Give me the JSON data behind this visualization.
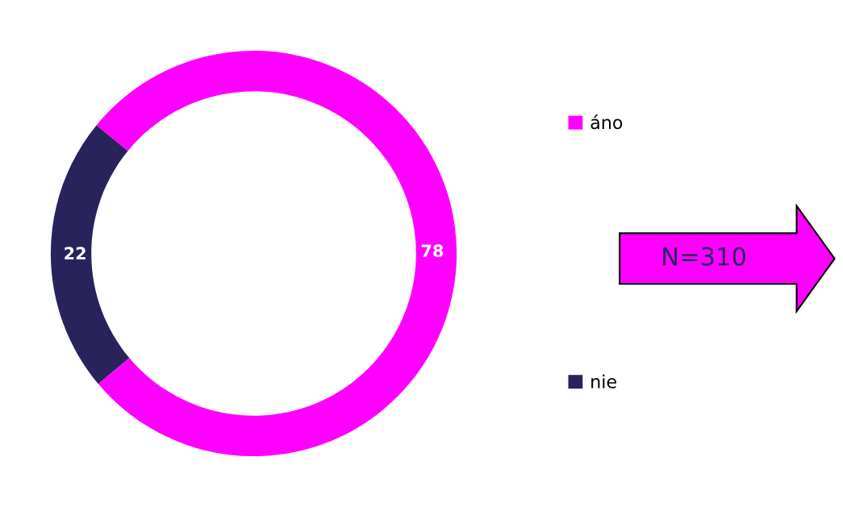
{
  "chart_data": {
    "type": "donut",
    "categories": [
      "áno",
      "nie"
    ],
    "values": [
      78,
      22
    ],
    "colors": [
      "#ff00ff",
      "#29235c"
    ],
    "data_labels": true,
    "legend": "right",
    "annotations": [
      "N=310"
    ]
  }
}
